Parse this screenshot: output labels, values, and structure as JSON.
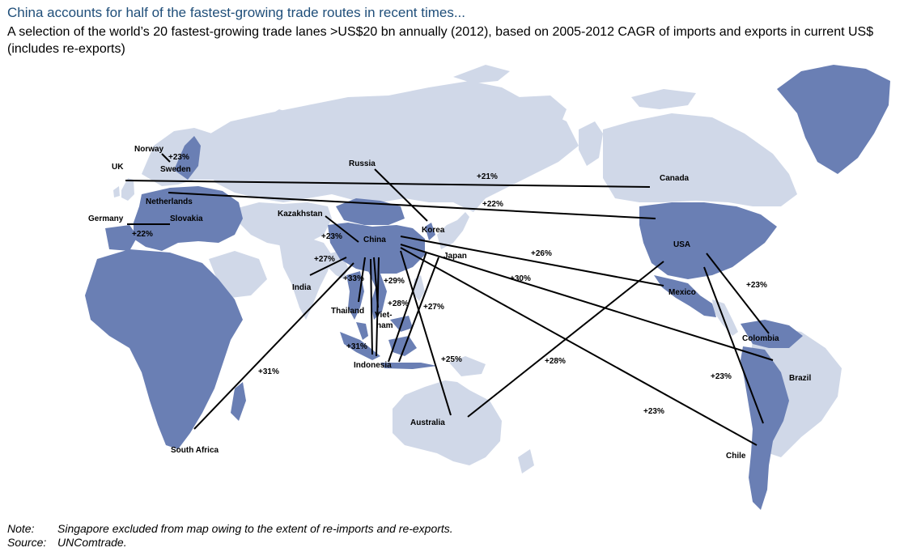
{
  "title": "China accounts for half of the fastest-growing trade routes in recent times...",
  "subtitle": "A selection of the world’s 20 fastest-growing trade lanes >US$20 bn annually (2012), based on 2005-2012 CAGR of imports and exports in current US$ (includes re-exports)",
  "colors": {
    "highlight_country": "#6a7fb4",
    "other_country": "#d0d8e8",
    "route_line": "#000000",
    "title": "#1f4e79"
  },
  "countries": {
    "norway": "Norway",
    "sweden": "Sweden",
    "uk": "UK",
    "netherlands": "Netherlands",
    "germany": "Germany",
    "slovakia": "Slovakia",
    "russia": "Russia",
    "kazakhstan": "Kazakhstan",
    "china": "China",
    "korea": "Korea",
    "japan": "Japan",
    "india": "India",
    "thailand": "Thailand",
    "vietnam_1": "Viet-",
    "vietnam_2": "nam",
    "indonesia": "Indonesia",
    "australia": "Australia",
    "south_africa": "South Africa",
    "canada": "Canada",
    "usa": "USA",
    "mexico": "Mexico",
    "colombia": "Colombia",
    "brazil": "Brazil",
    "chile": "Chile"
  },
  "routes": {
    "norway_sweden": "+23%",
    "germany_slovakia": "+22%",
    "uk_canada": "+21%",
    "netherlands_usa": "+22%",
    "china_kazakhstan": "+23%",
    "china_india": "+27%",
    "china_thailand": "+33%",
    "china_vietnam": "+29%",
    "china_indonesia": "+31%",
    "china_malaysia": "+28%",
    "china_philippines": "+27%",
    "china_australia": "+25%",
    "china_south_africa": "+31%",
    "china_mexico": "+26%",
    "china_brazil": "+30%",
    "china_chile": "+23%",
    "usa_australia": "+28%",
    "usa_colombia": "+23%",
    "usa_chile": "+23%"
  },
  "notes": {
    "note_label": "Note:",
    "note_text": "Singapore excluded from map owing to the extent of re-imports and re-exports.",
    "source_label": "Source:",
    "source_text": "UNComtrade."
  }
}
